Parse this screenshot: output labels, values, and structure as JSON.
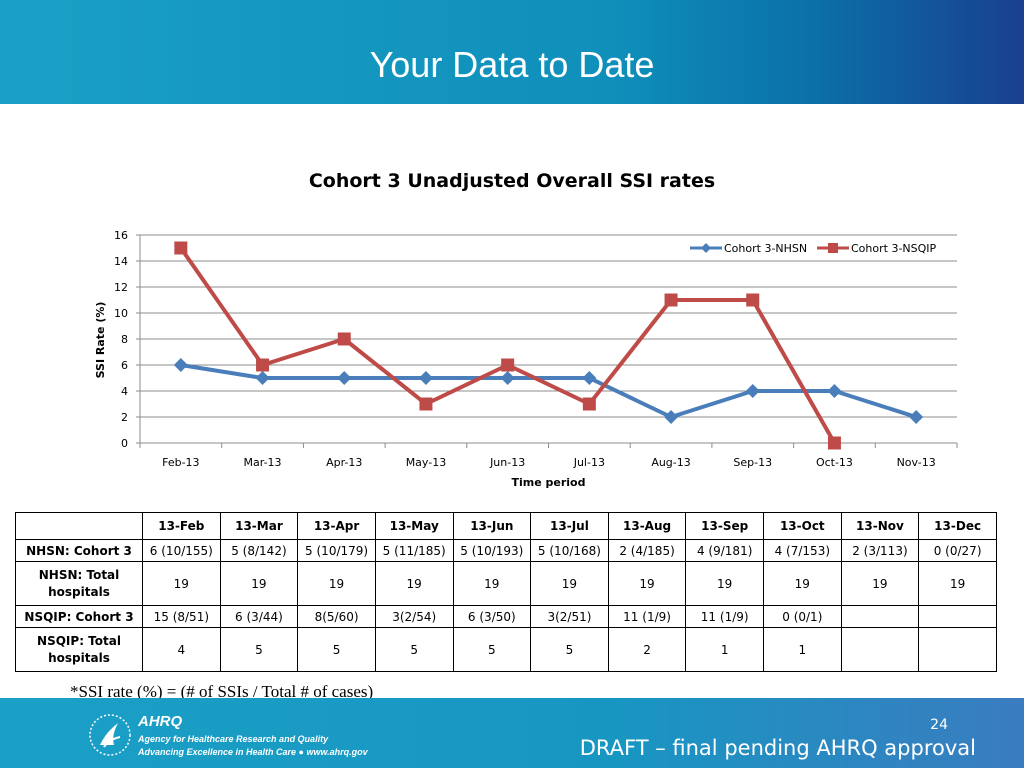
{
  "header": {
    "title": "Your Data to Date"
  },
  "chart_data": {
    "type": "line",
    "title": "Cohort 3 Unadjusted Overall SSI rates",
    "xlabel": "Time period",
    "ylabel": "SSI Rate (%)",
    "ylim": [
      0,
      16
    ],
    "y_ticks": [
      0,
      2,
      4,
      6,
      8,
      10,
      12,
      14,
      16
    ],
    "grid": "horizontal",
    "legend_position": "top-right",
    "categories": [
      "Feb-13",
      "Mar-13",
      "Apr-13",
      "May-13",
      "Jun-13",
      "Jul-13",
      "Aug-13",
      "Sep-13",
      "Oct-13",
      "Nov-13"
    ],
    "series": [
      {
        "name": "Cohort 3-NHSN",
        "color": "#4a7ebb",
        "marker": "diamond",
        "values": [
          6,
          5,
          5,
          5,
          5,
          5,
          2,
          4,
          4,
          2
        ]
      },
      {
        "name": "Cohort 3-NSQIP",
        "color": "#be4b48",
        "marker": "square",
        "values": [
          15,
          6,
          8,
          3,
          6,
          3,
          11,
          11,
          0,
          null
        ]
      }
    ]
  },
  "table": {
    "headers": [
      "",
      "13-Feb",
      "13-Mar",
      "13-Apr",
      "13-May",
      "13-Jun",
      "13-Jul",
      "13-Aug",
      "13-Sep",
      "13-Oct",
      "13-Nov",
      "13-Dec"
    ],
    "rows": [
      {
        "label": "NHSN: Cohort 3",
        "cells": [
          "6 (10/155)",
          "5 (8/142)",
          "5 (10/179)",
          "5 (11/185)",
          "5 (10/193)",
          "5 (10/168)",
          "2 (4/185)",
          "4 (9/181)",
          "4 (7/153)",
          "2 (3/113)",
          "0 (0/27)"
        ]
      },
      {
        "label": "NHSN: Total hospitals",
        "cells": [
          "19",
          "19",
          "19",
          "19",
          "19",
          "19",
          "19",
          "19",
          "19",
          "19",
          "19"
        ]
      },
      {
        "label": "NSQIP: Cohort 3",
        "cells": [
          "15 (8/51)",
          "6 (3/44)",
          "8(5/60)",
          "3(2/54)",
          "6 (3/50)",
          "3(2/51)",
          "11 (1/9)",
          "11 (1/9)",
          "0 (0/1)",
          "",
          ""
        ]
      },
      {
        "label": "NSQIP: Total hospitals",
        "cells": [
          "4",
          "5",
          "5",
          "5",
          "5",
          "5",
          "2",
          "1",
          "1",
          "",
          ""
        ]
      }
    ]
  },
  "footnote": "*SSI rate (%) = (# of SSIs / Total # of cases)",
  "footer": {
    "logo_word": "AHRQ",
    "logo_line1": "Agency for Healthcare Research and Quality",
    "logo_line2": "Advancing Excellence in Health Care ● www.ahrq.gov",
    "page_number": "24",
    "draft_text": "DRAFT – final pending AHRQ approval"
  }
}
